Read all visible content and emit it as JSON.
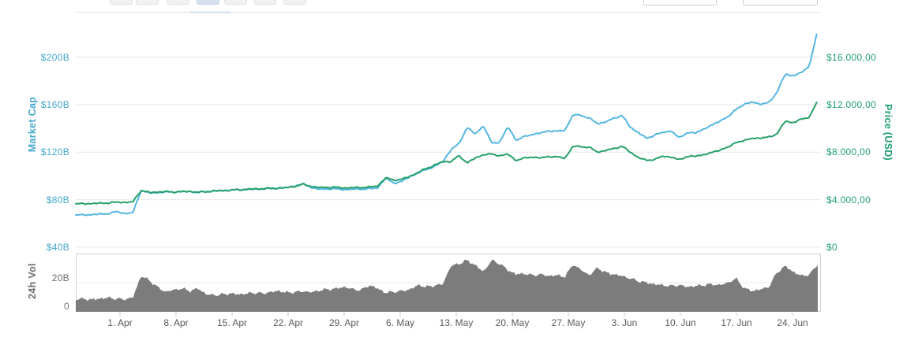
{
  "top_controls": {
    "range_button_count": 7,
    "selected_range_index": 3,
    "date_input_count": 2
  },
  "chart_data": {
    "type": "line",
    "title": "",
    "legend": "none",
    "grid": true,
    "panes": [
      "price-marketcap",
      "volume"
    ],
    "x": {
      "tick_labels": [
        "1. Apr",
        "8. Apr",
        "15. Apr",
        "22. Apr",
        "29. Apr",
        "6. May",
        "13. May",
        "20. May",
        "27. May",
        "3. Jun",
        "10. Jun",
        "17. Jun",
        "24. Jun"
      ],
      "tick_interval": "7 days",
      "points_per_series": 92
    },
    "left_axis": {
      "title": "Market Cap",
      "color": "#45a7cc",
      "tick_labels": [
        "$200B",
        "$160B",
        "$120B",
        "$80B",
        "$40B"
      ],
      "min": 40,
      "max": 200
    },
    "right_axis": {
      "title": "Price (USD)",
      "color": "#1f9e74",
      "tick_labels": [
        "$16.000,00",
        "$12.000,00",
        "$8.000,00",
        "$4.000,00",
        "$0"
      ],
      "min": 0,
      "max": 16000
    },
    "volume_axis": {
      "title": "24h Vol",
      "color": "#6d6e70",
      "tick_labels": [
        "20B",
        "0"
      ],
      "min": 0,
      "max": 40
    },
    "series": [
      {
        "name": "Market Cap",
        "type": "line",
        "axis": "left",
        "unit": "billion USD",
        "color": "#54b6e2",
        "values": [
          67,
          67.2,
          67.5,
          67.8,
          68.4,
          69.9,
          68.5,
          68.8,
          88,
          85.5,
          86,
          86.4,
          86.6,
          86.5,
          87,
          85.8,
          87,
          87.4,
          87.8,
          88,
          88.3,
          88.5,
          88.8,
          89,
          89.3,
          89.7,
          90.2,
          92,
          93.1,
          90,
          88.7,
          89.2,
          89,
          88.5,
          88.8,
          89,
          89.2,
          90,
          98,
          94,
          95.5,
          99.5,
          102.5,
          105.5,
          108,
          112,
          122,
          127,
          141,
          135,
          142.5,
          127.5,
          128.5,
          141.5,
          130,
          133,
          135,
          136,
          138,
          137.5,
          138.5,
          151.5,
          151,
          148.5,
          144,
          145.5,
          148.5,
          151,
          141,
          136.5,
          131.5,
          134.5,
          136.5,
          138,
          132,
          136.5,
          136,
          139.5,
          142.5,
          146.5,
          149.5,
          156.5,
          160,
          162.5,
          160,
          162,
          170,
          186,
          184,
          187,
          193,
          223
        ]
      },
      {
        "name": "Price (USD)",
        "type": "line",
        "axis": "right",
        "unit": "USD",
        "color": "#26a069",
        "values": [
          3650,
          3660,
          3680,
          3700,
          3730,
          3790,
          3780,
          3800,
          4800,
          4600,
          4650,
          4680,
          4650,
          4680,
          4700,
          4620,
          4680,
          4720,
          4760,
          4800,
          4850,
          4880,
          4910,
          4940,
          4960,
          4990,
          5020,
          5150,
          5300,
          5100,
          5020,
          5050,
          5030,
          4990,
          5010,
          5030,
          5060,
          5150,
          5840,
          5650,
          5720,
          5975,
          6300,
          6640,
          6900,
          7200,
          7200,
          7700,
          7100,
          7500,
          7800,
          7830,
          7700,
          7830,
          7300,
          7500,
          7600,
          7500,
          7640,
          7600,
          7500,
          8500,
          8470,
          8400,
          8000,
          8150,
          8300,
          8500,
          8000,
          7550,
          7300,
          7400,
          7650,
          7600,
          7350,
          7650,
          7650,
          7800,
          7950,
          8200,
          8400,
          8850,
          8950,
          9200,
          9150,
          9300,
          9500,
          10650,
          10450,
          10800,
          10950,
          12350
        ]
      },
      {
        "name": "24h Vol",
        "type": "area",
        "axis": "volume",
        "unit": "billion USD",
        "color": "#7c7c7c",
        "values": [
          8.6,
          8.9,
          8.3,
          9.1,
          9.7,
          8.9,
          8.6,
          9.7,
          24.6,
          21.7,
          17,
          13.7,
          15,
          16,
          14.3,
          16,
          12,
          11.4,
          12,
          12.6,
          12,
          12.6,
          13.1,
          12.6,
          13.7,
          14.3,
          13.1,
          13.7,
          14,
          13.4,
          14.9,
          15.4,
          16,
          17.1,
          15.4,
          14.9,
          18.3,
          16,
          13.1,
          13.7,
          14.3,
          15.4,
          18.3,
          17.1,
          18,
          18.9,
          31.4,
          33,
          35.4,
          32,
          27.4,
          35.4,
          33,
          28.6,
          25.7,
          26.3,
          25,
          25.7,
          24.6,
          25.1,
          24,
          32.6,
          28.6,
          25.1,
          30.3,
          26.9,
          25.7,
          24.6,
          22.9,
          21.1,
          20,
          18.9,
          18.3,
          17.7,
          18.3,
          17.1,
          17.7,
          18.3,
          18.9,
          18.3,
          20,
          22.9,
          16,
          14.3,
          15.4,
          17.1,
          27,
          31.4,
          27.4,
          24.6,
          25.7,
          32.6
        ]
      }
    ]
  }
}
